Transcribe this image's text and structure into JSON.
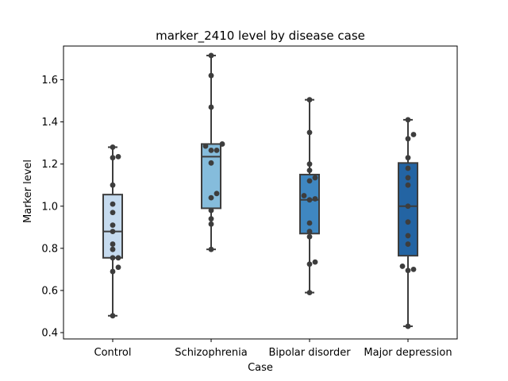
{
  "chart_data": {
    "type": "box",
    "title": "marker_2410 level by disease case",
    "xlabel": "Case",
    "ylabel": "Marker level",
    "ylim": [
      0.37,
      1.76
    ],
    "yticks": [
      0.4,
      0.6,
      0.8,
      1.0,
      1.2,
      1.4,
      1.6
    ],
    "ytick_labels": [
      "0.4",
      "0.6",
      "0.8",
      "1.0",
      "1.2",
      "1.4",
      "1.6"
    ],
    "grid": false,
    "categories": [
      "Control",
      "Schizophrenia",
      "Bipolar disorder",
      "Major depression"
    ],
    "colors": [
      "#c6dbef",
      "#85bcdc",
      "#3f87c1",
      "#2364a3"
    ],
    "boxes": [
      {
        "category": "Control",
        "whisker_low": 0.48,
        "q1": 0.755,
        "median": 0.88,
        "q3": 1.055,
        "whisker_high": 1.28
      },
      {
        "category": "Schizophrenia",
        "whisker_low": 0.795,
        "q1": 0.99,
        "median": 1.235,
        "q3": 1.295,
        "whisker_high": 1.715
      },
      {
        "category": "Bipolar disorder",
        "whisker_low": 0.59,
        "q1": 0.87,
        "median": 1.03,
        "q3": 1.15,
        "whisker_high": 1.505
      },
      {
        "category": "Major depression",
        "whisker_low": 0.43,
        "q1": 0.765,
        "median": 1.0,
        "q3": 1.205,
        "whisker_high": 1.41
      }
    ],
    "points": [
      [
        0.48,
        0.69,
        0.71,
        0.755,
        0.755,
        0.795,
        0.82,
        0.88,
        0.91,
        0.97,
        1.01,
        1.1,
        1.23,
        1.235,
        1.28
      ],
      [
        0.795,
        0.915,
        0.94,
        0.98,
        1.04,
        1.06,
        1.205,
        1.265,
        1.265,
        1.285,
        1.295,
        1.47,
        1.62,
        1.715
      ],
      [
        0.59,
        0.725,
        0.735,
        0.855,
        0.88,
        0.92,
        1.03,
        1.035,
        1.05,
        1.12,
        1.135,
        1.17,
        1.2,
        1.35,
        1.505
      ],
      [
        0.43,
        0.695,
        0.7,
        0.715,
        0.82,
        0.86,
        0.925,
        1.0,
        1.1,
        1.135,
        1.18,
        1.23,
        1.32,
        1.34,
        1.41
      ]
    ]
  }
}
